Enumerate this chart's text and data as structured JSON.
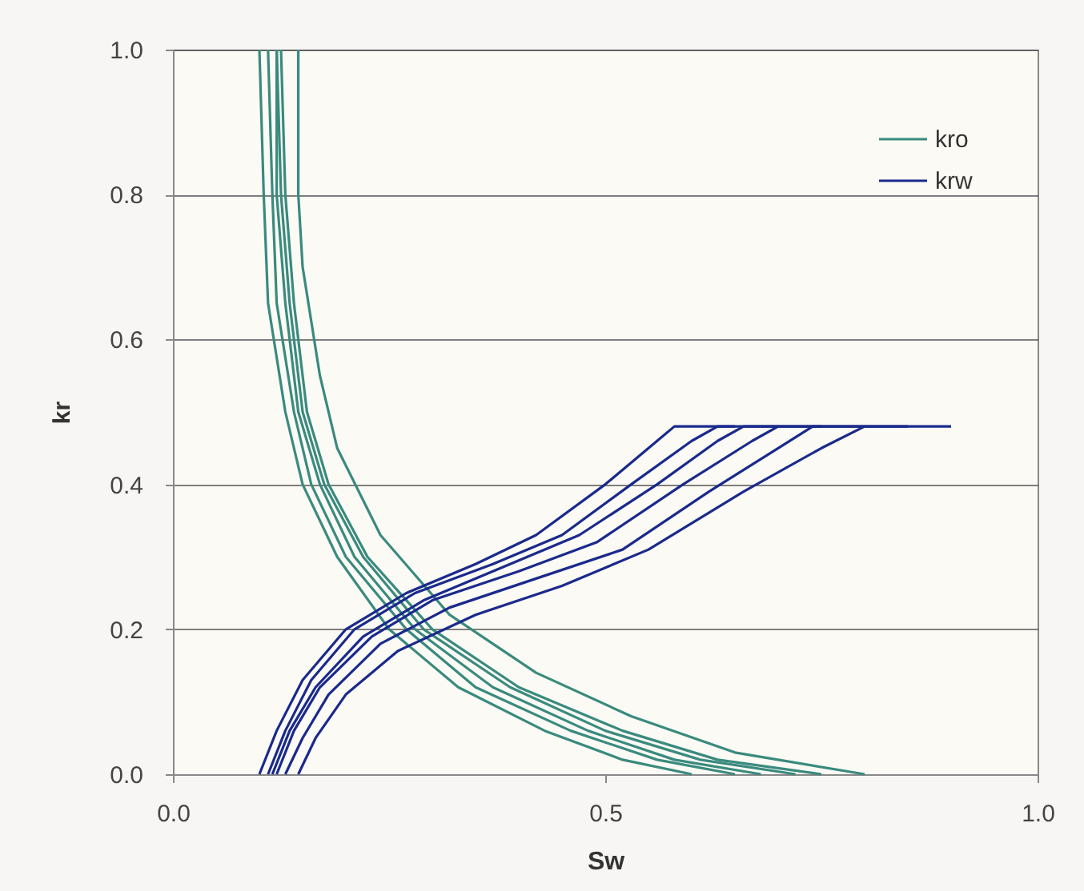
{
  "chart_data": {
    "type": "line",
    "xlabel": "Sw",
    "ylabel": "kr",
    "xlim": [
      0,
      1
    ],
    "ylim": [
      0,
      1
    ],
    "xticks": [
      {
        "value": 0,
        "label": "0.0"
      },
      {
        "value": 0.5,
        "label": "0.5"
      },
      {
        "value": 1,
        "label": "1.0"
      }
    ],
    "yticks": [
      {
        "value": 0,
        "label": "0.0"
      },
      {
        "value": 0.2,
        "label": "0.2"
      },
      {
        "value": 0.4,
        "label": "0.4"
      },
      {
        "value": 0.6,
        "label": "0.6"
      },
      {
        "value": 0.8,
        "label": "0.8"
      },
      {
        "value": 1,
        "label": "1.0"
      }
    ],
    "grid": "y",
    "legend": "top right",
    "line_style": "solid",
    "marker": "none",
    "series": [
      {
        "name": "kro",
        "color": "#3a8a7e",
        "x": [
          0.1,
          0.105,
          0.11,
          0.13,
          0.15,
          0.19,
          0.25,
          0.33,
          0.43,
          0.52,
          0.6
        ],
        "values": [
          1,
          0.8,
          0.65,
          0.5,
          0.4,
          0.3,
          0.2,
          0.12,
          0.06,
          0.02,
          0
        ]
      },
      {
        "color": "#3a8a7e",
        "x": [
          0.11,
          0.115,
          0.12,
          0.14,
          0.16,
          0.2,
          0.27,
          0.35,
          0.46,
          0.56,
          0.65
        ],
        "values": [
          1,
          0.8,
          0.65,
          0.5,
          0.4,
          0.3,
          0.2,
          0.12,
          0.06,
          0.02,
          0
        ]
      },
      {
        "color": "#3a8a7e",
        "x": [
          0.12,
          0.12,
          0.13,
          0.145,
          0.17,
          0.21,
          0.28,
          0.37,
          0.48,
          0.58,
          0.68
        ],
        "values": [
          1,
          0.8,
          0.65,
          0.5,
          0.4,
          0.3,
          0.2,
          0.12,
          0.06,
          0.02,
          0
        ]
      },
      {
        "color": "#3a8a7e",
        "x": [
          0.12,
          0.125,
          0.135,
          0.15,
          0.175,
          0.22,
          0.29,
          0.39,
          0.5,
          0.61,
          0.72
        ],
        "values": [
          1,
          0.8,
          0.65,
          0.5,
          0.4,
          0.3,
          0.2,
          0.12,
          0.06,
          0.02,
          0
        ]
      },
      {
        "color": "#3a8a7e",
        "x": [
          0.125,
          0.13,
          0.14,
          0.155,
          0.18,
          0.225,
          0.3,
          0.4,
          0.52,
          0.63,
          0.75
        ],
        "values": [
          1,
          0.8,
          0.65,
          0.5,
          0.4,
          0.3,
          0.2,
          0.12,
          0.06,
          0.02,
          0
        ]
      },
      {
        "color": "#3a8a7e",
        "x": [
          0.145,
          0.145,
          0.15,
          0.17,
          0.19,
          0.24,
          0.32,
          0.42,
          0.53,
          0.65,
          0.8
        ],
        "values": [
          1,
          0.8,
          0.7,
          0.55,
          0.45,
          0.33,
          0.22,
          0.14,
          0.08,
          0.03,
          0
        ]
      },
      {
        "name": "krw",
        "color": "#1a2a8c",
        "x": [
          0.1,
          0.12,
          0.15,
          0.2,
          0.27,
          0.35,
          0.42,
          0.5,
          0.56,
          0.58,
          0.65
        ],
        "values": [
          0,
          0.06,
          0.13,
          0.2,
          0.25,
          0.29,
          0.33,
          0.4,
          0.46,
          0.48,
          0.48
        ]
      },
      {
        "color": "#1a2a8c",
        "x": [
          0.11,
          0.13,
          0.16,
          0.21,
          0.28,
          0.37,
          0.45,
          0.53,
          0.6,
          0.63,
          0.7
        ],
        "values": [
          0,
          0.06,
          0.13,
          0.2,
          0.25,
          0.29,
          0.33,
          0.4,
          0.46,
          0.48,
          0.48
        ]
      },
      {
        "color": "#1a2a8c",
        "x": [
          0.115,
          0.135,
          0.165,
          0.22,
          0.29,
          0.39,
          0.47,
          0.56,
          0.63,
          0.66,
          0.75
        ],
        "values": [
          0,
          0.06,
          0.12,
          0.19,
          0.24,
          0.29,
          0.33,
          0.4,
          0.46,
          0.48,
          0.48
        ]
      },
      {
        "color": "#1a2a8c",
        "x": [
          0.12,
          0.14,
          0.17,
          0.23,
          0.3,
          0.4,
          0.49,
          0.59,
          0.67,
          0.7,
          0.8
        ],
        "values": [
          0,
          0.06,
          0.12,
          0.19,
          0.24,
          0.28,
          0.32,
          0.4,
          0.46,
          0.48,
          0.48
        ]
      },
      {
        "color": "#1a2a8c",
        "x": [
          0.13,
          0.15,
          0.18,
          0.24,
          0.32,
          0.42,
          0.52,
          0.62,
          0.7,
          0.74,
          0.85
        ],
        "values": [
          0,
          0.05,
          0.11,
          0.18,
          0.23,
          0.27,
          0.31,
          0.39,
          0.45,
          0.48,
          0.48
        ]
      },
      {
        "color": "#1a2a8c",
        "x": [
          0.145,
          0.165,
          0.2,
          0.26,
          0.35,
          0.45,
          0.55,
          0.66,
          0.75,
          0.8,
          0.9
        ],
        "values": [
          0,
          0.05,
          0.11,
          0.17,
          0.22,
          0.26,
          0.31,
          0.39,
          0.45,
          0.48,
          0.48
        ]
      }
    ]
  }
}
